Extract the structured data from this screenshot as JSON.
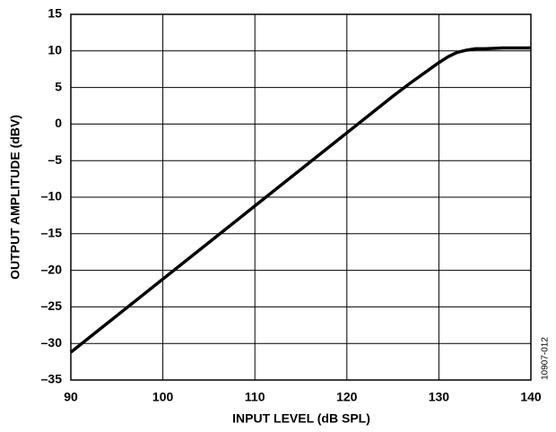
{
  "chart_data": {
    "type": "line",
    "x_label": "INPUT LEVEL (dB SPL)",
    "y_label": "OUTPUT AMPLITUDE (dBV)",
    "figure_id": "10907-012",
    "xlim": [
      90,
      140
    ],
    "xticks": [
      90,
      100,
      110,
      120,
      130,
      140
    ],
    "ylim": [
      -35,
      15
    ],
    "yticks": [
      {
        "value": -35,
        "label": "–35"
      },
      {
        "value": -30,
        "label": "–30"
      },
      {
        "value": -25,
        "label": "–25"
      },
      {
        "value": -20,
        "label": "–20"
      },
      {
        "value": -15,
        "label": "–15"
      },
      {
        "value": -10,
        "label": "–10"
      },
      {
        "value": -5,
        "label": "–5"
      },
      0,
      5,
      10,
      15
    ],
    "grid": true,
    "series": [
      {
        "color": "#000000",
        "x": [
          90,
          100,
          110,
          120,
          125,
          127,
          129,
          130,
          131,
          132,
          133,
          134,
          135,
          137,
          140
        ],
        "values": [
          -31.2,
          -21.2,
          -11.2,
          -1.2,
          3.8,
          5.7,
          7.5,
          8.4,
          9.2,
          9.8,
          10.1,
          10.3,
          10.3,
          10.4,
          10.4
        ]
      }
    ]
  }
}
